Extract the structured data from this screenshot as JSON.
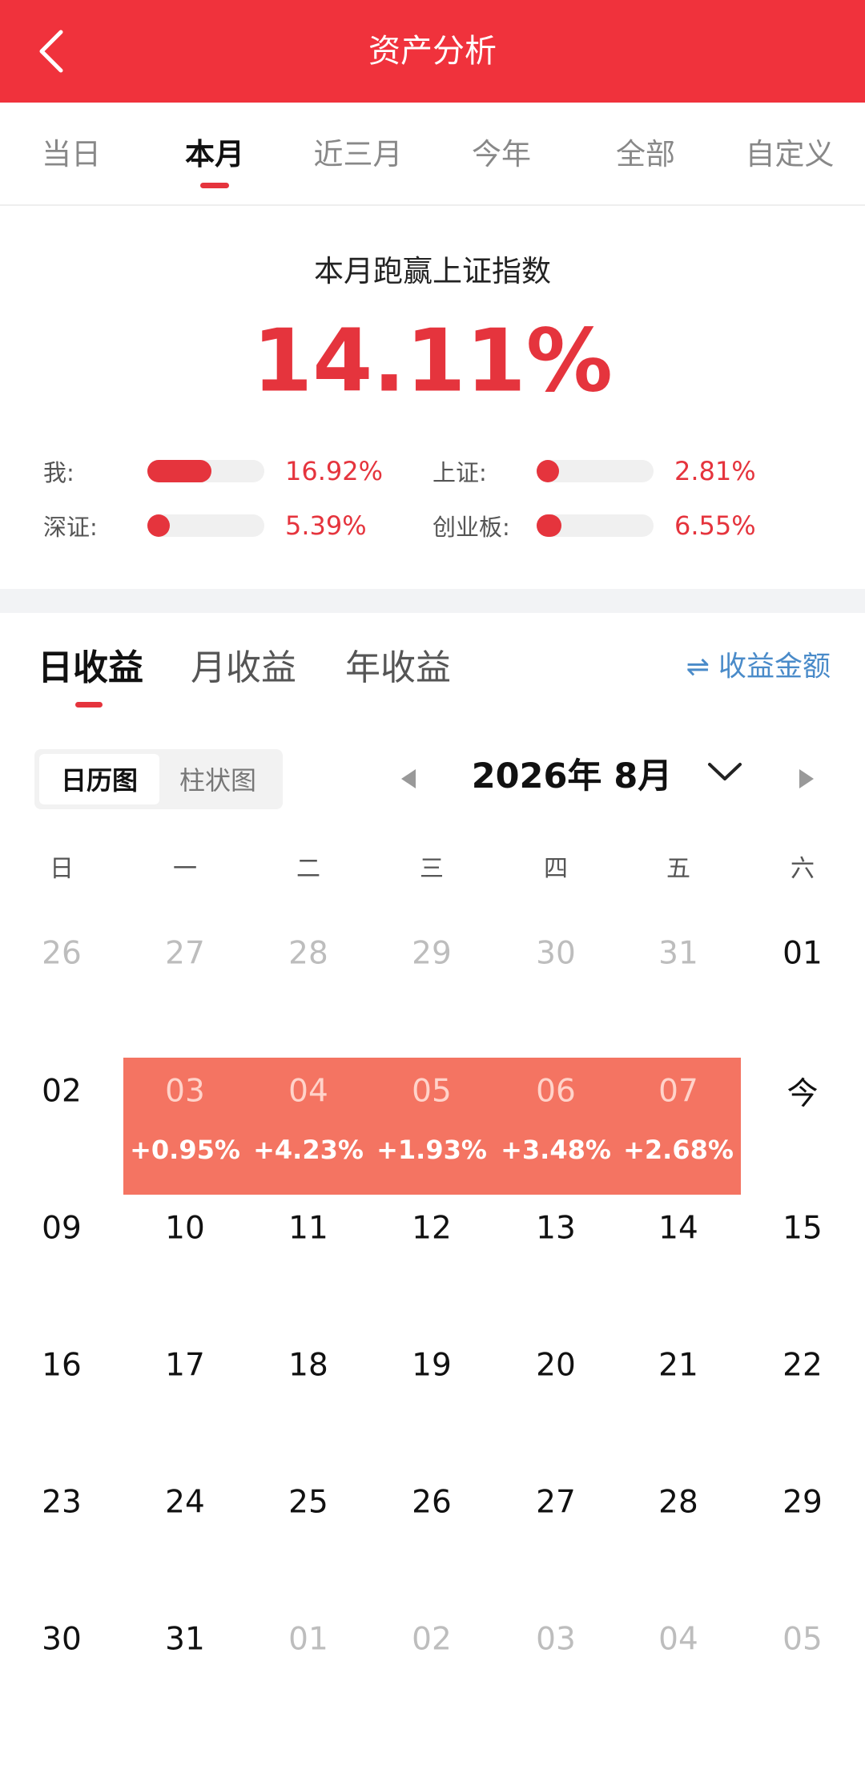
{
  "header": {
    "title": "资产分析"
  },
  "period_tabs": {
    "items": [
      "当日",
      "本月",
      "近三月",
      "今年",
      "全部",
      "自定义"
    ],
    "active": 1
  },
  "summary": {
    "title": "本月跑赢上证指数",
    "value": "14.11%",
    "comparisons": [
      {
        "label": "我:",
        "value": 16.92,
        "value_label": "16.92%"
      },
      {
        "label": "上证:",
        "value": 2.81,
        "value_label": "2.81%"
      },
      {
        "label": "深证:",
        "value": 5.39,
        "value_label": "5.39%"
      },
      {
        "label": "创业板:",
        "value": 6.55,
        "value_label": "6.55%"
      }
    ]
  },
  "section_tabs": {
    "items": [
      "日收益",
      "月收益",
      "年收益"
    ],
    "active": 0,
    "switch": "⇌ 收益金额"
  },
  "view_toggle": {
    "items": [
      "日历图",
      "柱状图"
    ],
    "active": 0
  },
  "month": "2026年 8月",
  "calendar": {
    "weekdays": [
      "日",
      "一",
      "二",
      "三",
      "四",
      "五",
      "六"
    ],
    "weeks": [
      [
        {
          "day": "26",
          "muted": true
        },
        {
          "day": "27",
          "muted": true
        },
        {
          "day": "28",
          "muted": true
        },
        {
          "day": "29",
          "muted": true
        },
        {
          "day": "30",
          "muted": true
        },
        {
          "day": "31",
          "muted": true
        },
        {
          "day": "01"
        }
      ],
      [
        {
          "day": "02"
        },
        {
          "day": "03",
          "return": "+0.95%"
        },
        {
          "day": "04",
          "return": "+4.23%"
        },
        {
          "day": "05",
          "return": "+1.93%"
        },
        {
          "day": "06",
          "return": "+3.48%"
        },
        {
          "day": "07",
          "return": "+2.68%"
        },
        {
          "day": "今"
        }
      ],
      [
        {
          "day": "09"
        },
        {
          "day": "10"
        },
        {
          "day": "11"
        },
        {
          "day": "12"
        },
        {
          "day": "13"
        },
        {
          "day": "14"
        },
        {
          "day": "15"
        }
      ],
      [
        {
          "day": "16"
        },
        {
          "day": "17"
        },
        {
          "day": "18"
        },
        {
          "day": "19"
        },
        {
          "day": "20"
        },
        {
          "day": "21"
        },
        {
          "day": "22"
        }
      ],
      [
        {
          "day": "23"
        },
        {
          "day": "24"
        },
        {
          "day": "25"
        },
        {
          "day": "26"
        },
        {
          "day": "27"
        },
        {
          "day": "28"
        },
        {
          "day": "29"
        }
      ],
      [
        {
          "day": "30"
        },
        {
          "day": "31"
        },
        {
          "day": "01",
          "muted": true
        },
        {
          "day": "02",
          "muted": true
        },
        {
          "day": "03",
          "muted": true
        },
        {
          "day": "04",
          "muted": true
        },
        {
          "day": "05",
          "muted": true
        }
      ]
    ]
  }
}
